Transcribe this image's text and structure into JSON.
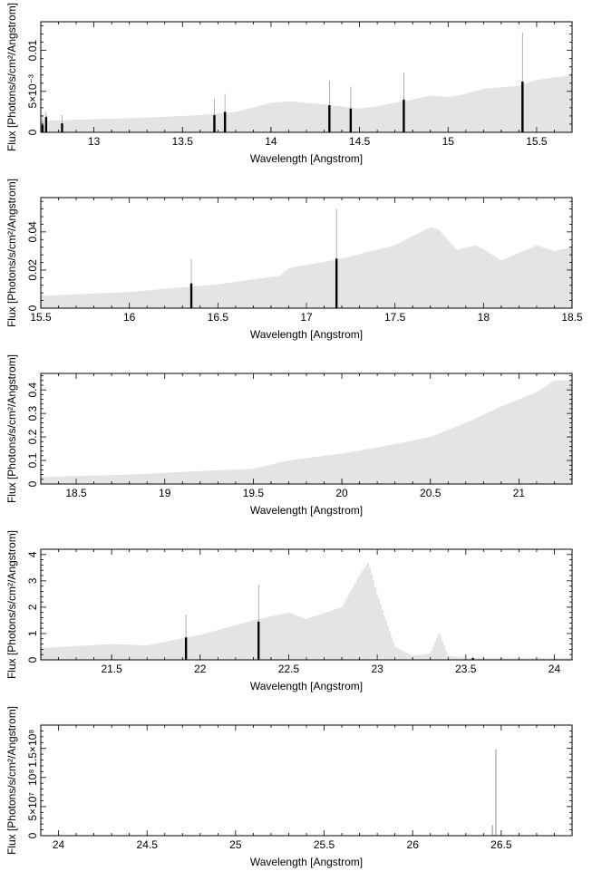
{
  "chart_data": [
    {
      "type": "bar",
      "xlabel": "Wavelength [Angstrom]",
      "ylabel": "Flux [Photons/s/cm²/Angstrom]",
      "xlim": [
        12.7,
        15.7
      ],
      "ylim": [
        0,
        0.0135
      ],
      "xticks": [
        13,
        13.5,
        14,
        14.5,
        15,
        15.5
      ],
      "xtick_labels": [
        "13",
        "13.5",
        "14",
        "14.5",
        "15",
        "15.5"
      ],
      "yticks": [
        0,
        0.005,
        0.01
      ],
      "ytick_labels": [
        "0",
        "5×10⁻³",
        "0.01"
      ],
      "grid": false,
      "continuum": {
        "x": [
          12.7,
          13.0,
          13.3,
          13.6,
          13.8,
          14.0,
          14.1,
          14.2,
          14.3,
          14.5,
          14.6,
          14.8,
          14.9,
          15.0,
          15.1,
          15.2,
          15.4,
          15.5,
          15.7
        ],
        "y": [
          0.0014,
          0.0016,
          0.0018,
          0.0021,
          0.0025,
          0.0036,
          0.0038,
          0.0036,
          0.0034,
          0.0029,
          0.0032,
          0.004,
          0.0045,
          0.0043,
          0.0047,
          0.0053,
          0.0057,
          0.0064,
          0.007
        ]
      },
      "lines": [
        {
          "x": 12.71,
          "y": 0.0009,
          "err": 0.0012
        },
        {
          "x": 12.73,
          "y": 0.0019,
          "err": 0.0006
        },
        {
          "x": 12.82,
          "y": 0.0011,
          "err": 0.001
        },
        {
          "x": 13.68,
          "y": 0.0021,
          "err": 0.002
        },
        {
          "x": 13.74,
          "y": 0.0025,
          "err": 0.0022
        },
        {
          "x": 14.33,
          "y": 0.0033,
          "err": 0.003
        },
        {
          "x": 14.45,
          "y": 0.0029,
          "err": 0.0027
        },
        {
          "x": 14.75,
          "y": 0.004,
          "err": 0.0033
        },
        {
          "x": 15.42,
          "y": 0.0062,
          "err": 0.006
        }
      ]
    },
    {
      "type": "bar",
      "xlabel": "Wavelength [Angstrom]",
      "ylabel": "Flux [Photons/s/cm²/Angstrom]",
      "xlim": [
        15.5,
        18.5
      ],
      "ylim": [
        0,
        0.058
      ],
      "xticks": [
        15.5,
        16,
        16.5,
        17,
        17.5,
        18,
        18.5
      ],
      "xtick_labels": [
        "15.5",
        "16",
        "16.5",
        "17",
        "17.5",
        "18",
        "18.5"
      ],
      "yticks": [
        0,
        0.02,
        0.04
      ],
      "ytick_labels": [
        "0",
        "0.02",
        "0.04"
      ],
      "grid": false,
      "continuum": {
        "x": [
          15.5,
          16.0,
          16.5,
          16.85,
          16.9,
          17.2,
          17.5,
          17.7,
          17.75,
          17.85,
          17.95,
          18.0,
          18.1,
          18.3,
          18.4,
          18.5
        ],
        "y": [
          0.0065,
          0.0085,
          0.0125,
          0.017,
          0.021,
          0.026,
          0.033,
          0.0425,
          0.041,
          0.0305,
          0.033,
          0.031,
          0.025,
          0.033,
          0.03,
          0.032
        ]
      },
      "lines": [
        {
          "x": 16.35,
          "y": 0.013,
          "err": 0.0125
        },
        {
          "x": 17.17,
          "y": 0.026,
          "err": 0.026
        }
      ]
    },
    {
      "type": "bar",
      "xlabel": "Wavelength [Angstrom]",
      "ylabel": "Flux [Photons/s/cm²/Angstrom]",
      "xlim": [
        18.3,
        21.3
      ],
      "ylim": [
        0,
        0.47
      ],
      "xticks": [
        18.5,
        19,
        19.5,
        20,
        20.5,
        21
      ],
      "xtick_labels": [
        "18.5",
        "19",
        "19.5",
        "20",
        "20.5",
        "21"
      ],
      "yticks": [
        0,
        0.1,
        0.2,
        0.3,
        0.4
      ],
      "ytick_labels": [
        "0",
        "0.1",
        "0.2",
        "0.3",
        "0.4"
      ],
      "grid": false,
      "continuum": {
        "x": [
          18.3,
          18.8,
          19.2,
          19.5,
          19.7,
          20.0,
          20.2,
          20.5,
          20.7,
          20.9,
          21.1,
          21.2,
          21.3
        ],
        "y": [
          0.03,
          0.04,
          0.055,
          0.065,
          0.1,
          0.13,
          0.155,
          0.2,
          0.26,
          0.33,
          0.39,
          0.44,
          0.44
        ]
      },
      "lines": []
    },
    {
      "type": "bar",
      "xlabel": "Wavelength [Angstrom]",
      "ylabel": "Flux [Photons/s/cm²/Angstrom]",
      "xlim": [
        21.1,
        24.1
      ],
      "ylim": [
        0,
        4.2
      ],
      "xticks": [
        21.5,
        22,
        22.5,
        23,
        23.5,
        24
      ],
      "xtick_labels": [
        "21.5",
        "22",
        "22.5",
        "23",
        "23.5",
        "24"
      ],
      "yticks": [
        0,
        1,
        2,
        3,
        4
      ],
      "ytick_labels": [
        "0",
        "1",
        "2",
        "3",
        "4"
      ],
      "grid": false,
      "continuum": {
        "x": [
          21.1,
          21.5,
          21.7,
          22.0,
          22.3,
          22.5,
          22.6,
          22.8,
          22.9,
          22.95,
          23.0,
          23.1,
          23.2,
          23.3,
          23.35,
          23.4,
          23.5,
          24.1
        ],
        "y": [
          0.45,
          0.6,
          0.55,
          0.95,
          1.5,
          1.8,
          1.55,
          2.0,
          3.2,
          3.7,
          2.5,
          0.5,
          0.15,
          0.25,
          1.05,
          0.15,
          0.08,
          0.08
        ]
      },
      "lines": [
        {
          "x": 21.92,
          "y": 0.85,
          "err": 0.85
        },
        {
          "x": 22.33,
          "y": 1.45,
          "err": 1.4
        },
        {
          "x": 23.54,
          "y": 0.07,
          "err": 0.05
        }
      ]
    },
    {
      "type": "bar",
      "xlabel": "Wavelength [Angstrom]",
      "ylabel": "Flux [Photons/s/cm²/Angstrom]",
      "xlim": [
        23.9,
        26.9
      ],
      "ylim": [
        0,
        190000000
      ],
      "xticks": [
        24,
        24.5,
        25,
        25.5,
        26,
        26.5
      ],
      "xtick_labels": [
        "24",
        "24.5",
        "25",
        "25.5",
        "26",
        "26.5"
      ],
      "yticks": [
        0,
        50000000,
        100000000,
        150000000
      ],
      "ytick_labels": [
        "0",
        "5×10⁷",
        "10⁸",
        "1.5×10⁸"
      ],
      "grid": false,
      "continuum": {
        "x": [
          23.9,
          26.9
        ],
        "y": [
          0,
          0
        ]
      },
      "spikes": [
        {
          "x": 26.45,
          "y": 18000000
        },
        {
          "x": 26.47,
          "y": 148000000
        }
      ],
      "lines": []
    }
  ]
}
